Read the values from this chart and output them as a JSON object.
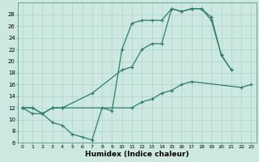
{
  "xlabel": "Humidex (Indice chaleur)",
  "bg_color": "#cde8e0",
  "line_color": "#2e7d6e",
  "grid_color": "#aed4c8",
  "xlim": [
    -0.5,
    23.5
  ],
  "ylim": [
    6,
    30
  ],
  "yticks": [
    6,
    8,
    10,
    12,
    14,
    16,
    18,
    20,
    22,
    24,
    26,
    28
  ],
  "xticks": [
    0,
    1,
    2,
    3,
    4,
    5,
    6,
    7,
    8,
    9,
    10,
    11,
    12,
    13,
    14,
    15,
    16,
    17,
    18,
    19,
    20,
    21,
    22,
    23
  ],
  "line1_x": [
    0,
    1,
    2,
    3,
    4,
    5,
    6,
    7,
    8,
    9,
    10,
    11,
    12,
    13,
    14,
    15,
    16,
    17,
    18,
    19,
    20,
    21
  ],
  "line1_y": [
    12,
    11,
    11,
    9.5,
    9,
    7.5,
    7,
    6.5,
    12,
    11.5,
    22,
    26.5,
    27,
    27,
    27,
    29,
    28.5,
    29,
    29,
    27.5,
    21,
    18.5
  ],
  "line2_x": [
    0,
    1,
    2,
    3,
    4,
    7,
    10,
    11,
    12,
    13,
    14,
    15,
    16,
    17,
    18,
    19,
    20,
    21
  ],
  "line2_y": [
    12,
    12,
    11,
    12,
    12,
    14.5,
    18.5,
    19,
    22,
    23,
    23,
    29,
    28.5,
    29,
    29,
    27,
    21,
    18.5
  ],
  "line3_x": [
    0,
    1,
    2,
    3,
    4,
    11,
    12,
    13,
    14,
    15,
    16,
    17,
    22,
    23
  ],
  "line3_y": [
    12,
    12,
    11,
    12,
    12,
    12,
    13,
    13.5,
    14.5,
    15,
    16,
    16.5,
    15.5,
    16
  ]
}
